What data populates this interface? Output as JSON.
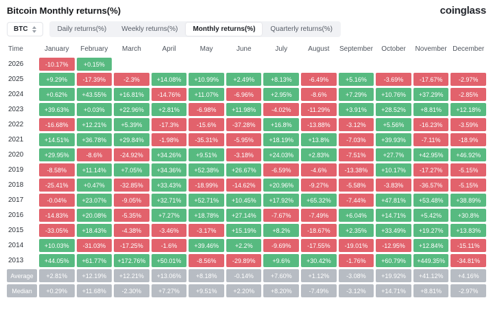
{
  "header": {
    "title": "Bitcoin Monthly returns(%)",
    "logo": "coinglass"
  },
  "controls": {
    "symbol": "BTC",
    "tabs": [
      {
        "label": "Daily returns(%)",
        "active": false
      },
      {
        "label": "Weekly returns(%)",
        "active": false
      },
      {
        "label": "Monthly returns(%)",
        "active": true
      },
      {
        "label": "Quarterly returns(%)",
        "active": false
      }
    ]
  },
  "colors": {
    "positive": "#57ba80",
    "negative": "#e2626c",
    "summary": "#b7bcc3"
  },
  "table": {
    "columns": [
      "Time",
      "January",
      "February",
      "March",
      "April",
      "May",
      "June",
      "July",
      "August",
      "September",
      "October",
      "November",
      "December"
    ],
    "rows": [
      {
        "label": "2026",
        "summary": false,
        "values": [
          "-10.17%",
          "+0.15%",
          "",
          "",
          "",
          "",
          "",
          "",
          "",
          "",
          "",
          ""
        ]
      },
      {
        "label": "2025",
        "summary": false,
        "values": [
          "+9.29%",
          "-17.39%",
          "-2.3%",
          "+14.08%",
          "+10.99%",
          "+2.49%",
          "+8.13%",
          "-6.49%",
          "+5.16%",
          "-3.69%",
          "-17.67%",
          "-2.97%"
        ]
      },
      {
        "label": "2024",
        "summary": false,
        "values": [
          "+0.62%",
          "+43.55%",
          "+16.81%",
          "-14.76%",
          "+11.07%",
          "-6.96%",
          "+2.95%",
          "-8.6%",
          "+7.29%",
          "+10.76%",
          "+37.29%",
          "-2.85%"
        ]
      },
      {
        "label": "2023",
        "summary": false,
        "values": [
          "+39.63%",
          "+0.03%",
          "+22.96%",
          "+2.81%",
          "-6.98%",
          "+11.98%",
          "-4.02%",
          "-11.29%",
          "+3.91%",
          "+28.52%",
          "+8.81%",
          "+12.18%"
        ]
      },
      {
        "label": "2022",
        "summary": false,
        "values": [
          "-16.68%",
          "+12.21%",
          "+5.39%",
          "-17.3%",
          "-15.6%",
          "-37.28%",
          "+16.8%",
          "-13.88%",
          "-3.12%",
          "+5.56%",
          "-16.23%",
          "-3.59%"
        ]
      },
      {
        "label": "2021",
        "summary": false,
        "values": [
          "+14.51%",
          "+36.78%",
          "+29.84%",
          "-1.98%",
          "-35.31%",
          "-5.95%",
          "+18.19%",
          "+13.8%",
          "-7.03%",
          "+39.93%",
          "-7.11%",
          "-18.9%"
        ]
      },
      {
        "label": "2020",
        "summary": false,
        "values": [
          "+29.95%",
          "-8.6%",
          "-24.92%",
          "+34.26%",
          "+9.51%",
          "-3.18%",
          "+24.03%",
          "+2.83%",
          "-7.51%",
          "+27.7%",
          "+42.95%",
          "+46.92%"
        ]
      },
      {
        "label": "2019",
        "summary": false,
        "values": [
          "-8.58%",
          "+11.14%",
          "+7.05%",
          "+34.36%",
          "+52.38%",
          "+26.67%",
          "-6.59%",
          "-4.6%",
          "-13.38%",
          "+10.17%",
          "-17.27%",
          "-5.15%"
        ]
      },
      {
        "label": "2018",
        "summary": false,
        "values": [
          "-25.41%",
          "+0.47%",
          "-32.85%",
          "+33.43%",
          "-18.99%",
          "-14.62%",
          "+20.96%",
          "-9.27%",
          "-5.58%",
          "-3.83%",
          "-36.57%",
          "-5.15%"
        ]
      },
      {
        "label": "2017",
        "summary": false,
        "values": [
          "-0.04%",
          "+23.07%",
          "-9.05%",
          "+32.71%",
          "+52.71%",
          "+10.45%",
          "+17.92%",
          "+65.32%",
          "-7.44%",
          "+47.81%",
          "+53.48%",
          "+38.89%"
        ]
      },
      {
        "label": "2016",
        "summary": false,
        "values": [
          "-14.83%",
          "+20.08%",
          "-5.35%",
          "+7.27%",
          "+18.78%",
          "+27.14%",
          "-7.67%",
          "-7.49%",
          "+6.04%",
          "+14.71%",
          "+5.42%",
          "+30.8%"
        ]
      },
      {
        "label": "2015",
        "summary": false,
        "values": [
          "-33.05%",
          "+18.43%",
          "-4.38%",
          "-3.46%",
          "-3.17%",
          "+15.19%",
          "+8.2%",
          "-18.67%",
          "+2.35%",
          "+33.49%",
          "+19.27%",
          "+13.83%"
        ]
      },
      {
        "label": "2014",
        "summary": false,
        "values": [
          "+10.03%",
          "-31.03%",
          "-17.25%",
          "-1.6%",
          "+39.46%",
          "+2.2%",
          "-9.69%",
          "-17.55%",
          "-19.01%",
          "-12.95%",
          "+12.84%",
          "-15.11%"
        ]
      },
      {
        "label": "2013",
        "summary": false,
        "values": [
          "+44.05%",
          "+61.77%",
          "+172.76%",
          "+50.01%",
          "-8.56%",
          "-29.89%",
          "+9.6%",
          "+30.42%",
          "-1.76%",
          "+60.79%",
          "+449.35%",
          "-34.81%"
        ]
      },
      {
        "label": "Average",
        "summary": true,
        "values": [
          "+2.81%",
          "+12.19%",
          "+12.21%",
          "+13.06%",
          "+8.18%",
          "-0.14%",
          "+7.60%",
          "+1.12%",
          "-3.08%",
          "+19.92%",
          "+41.12%",
          "+4.16%"
        ]
      },
      {
        "label": "Median",
        "summary": true,
        "values": [
          "+0.29%",
          "+11.68%",
          "-2.30%",
          "+7.27%",
          "+9.51%",
          "+2.20%",
          "+8.20%",
          "-7.49%",
          "-3.12%",
          "+14.71%",
          "+8.81%",
          "-2.97%"
        ]
      }
    ]
  }
}
